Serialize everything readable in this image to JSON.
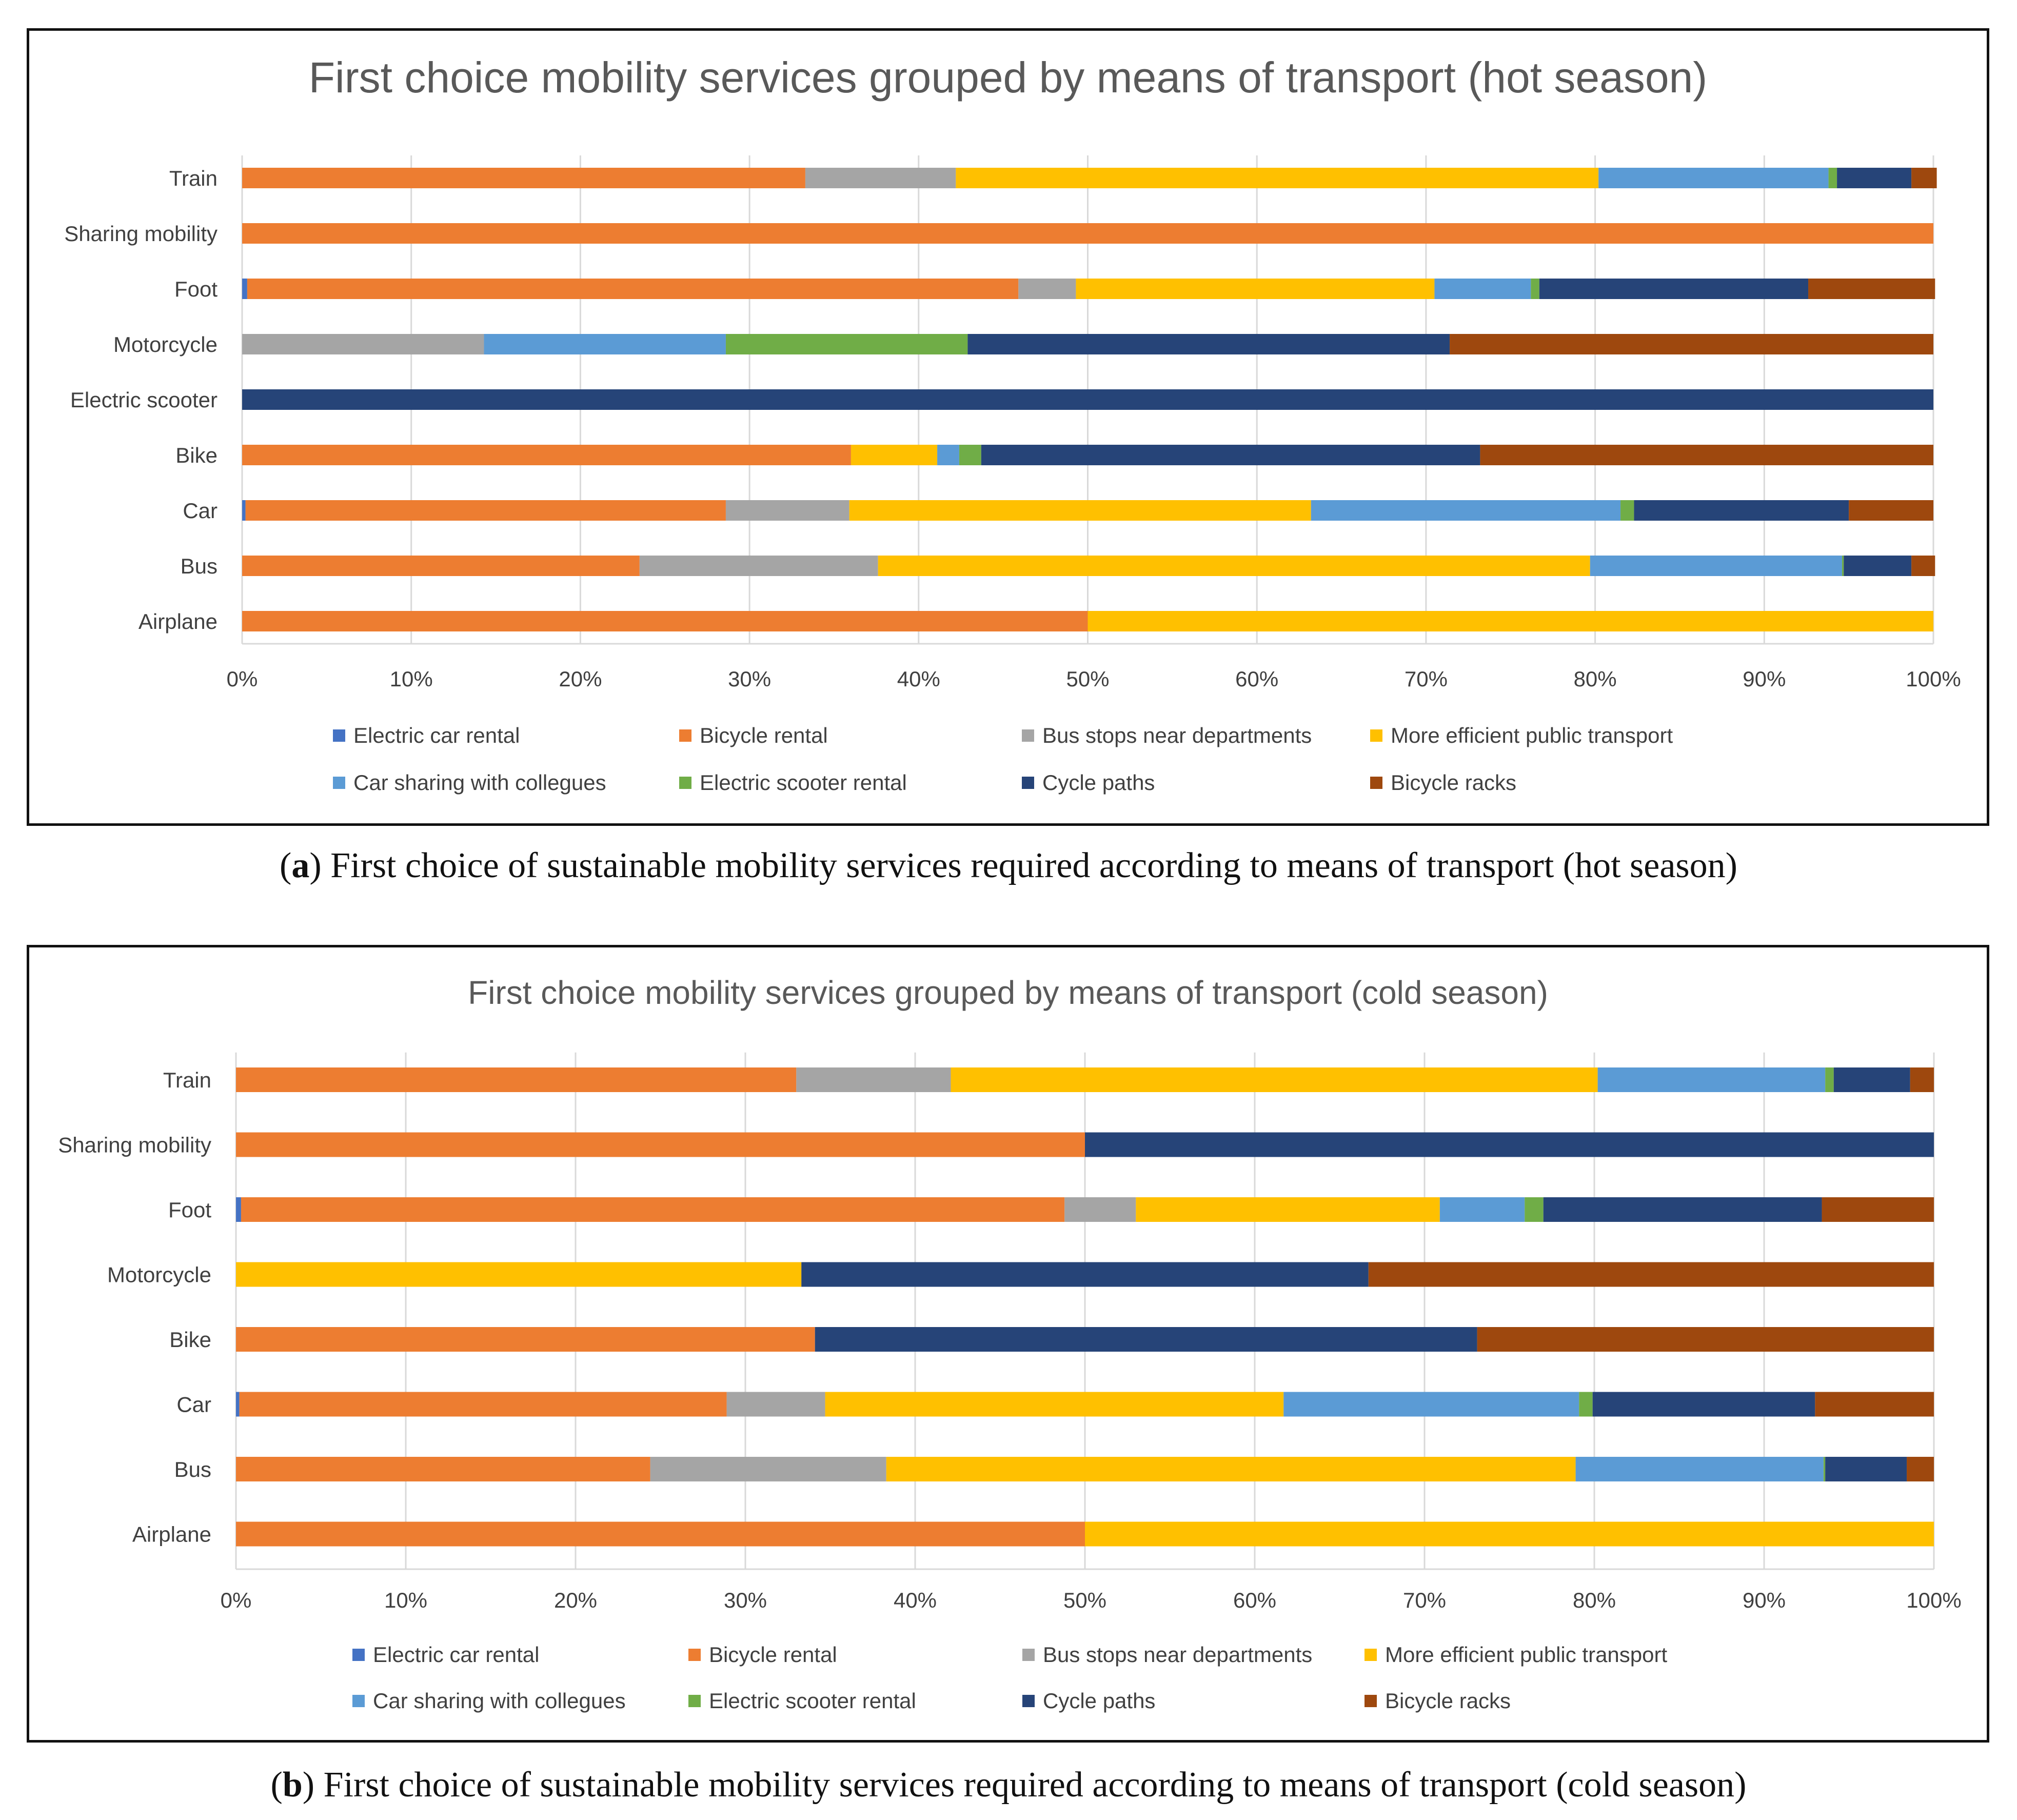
{
  "chart_data": [
    {
      "type": "bar",
      "orientation": "horizontal",
      "stacked": "percent",
      "title": "First choice mobility services grouped by means of transport (hot season)",
      "categories": [
        "Train",
        "Sharing mobility",
        "Foot",
        "Motorcycle",
        "Electric scooter",
        "Bike",
        "Car",
        "Bus",
        "Airplane"
      ],
      "xticks": [
        "0%",
        "10%",
        "20%",
        "30%",
        "40%",
        "50%",
        "60%",
        "70%",
        "80%",
        "90%",
        "100%"
      ],
      "xlim": [
        0,
        100
      ],
      "grid": true,
      "legend_position": "bottom",
      "series": [
        {
          "name": "Electric car rental",
          "color": "#4472C4",
          "values": [
            0,
            0,
            0.3,
            0,
            0,
            0,
            0.2,
            0,
            0
          ]
        },
        {
          "name": "Bicycle rental",
          "color": "#ED7D31",
          "values": [
            33.3,
            100,
            45.6,
            0,
            0,
            36,
            28.4,
            23.5,
            50
          ]
        },
        {
          "name": "Bus stops near departments",
          "color": "#A5A5A5",
          "values": [
            8.9,
            0,
            3.4,
            14.3,
            0,
            0,
            7.3,
            14.1,
            0
          ]
        },
        {
          "name": "More efficient public transport",
          "color": "#FFC000",
          "values": [
            38,
            0,
            21.2,
            0,
            0,
            5.1,
            27.3,
            42.1,
            50
          ]
        },
        {
          "name": "Car sharing with collegues",
          "color": "#5B9BD5",
          "values": [
            13.6,
            0,
            5.7,
            14.3,
            0,
            1.3,
            18.3,
            14.9,
            0
          ]
        },
        {
          "name": "Electric scooter rental",
          "color": "#70AD47",
          "values": [
            0.5,
            0,
            0.5,
            14.3,
            0,
            1.3,
            0.8,
            0.1,
            0
          ]
        },
        {
          "name": "Cycle paths",
          "color": "#264478",
          "values": [
            4.4,
            0,
            15.9,
            28.5,
            100,
            29.5,
            12.7,
            4,
            0
          ]
        },
        {
          "name": "Bicycle racks",
          "color": "#9E480E",
          "values": [
            1.5,
            0,
            7.5,
            28.6,
            0,
            26.8,
            5,
            1.4,
            0
          ]
        }
      ]
    },
    {
      "type": "bar",
      "orientation": "horizontal",
      "stacked": "percent",
      "title": "First choice mobility services grouped by means of transport (cold season)",
      "categories": [
        "Train",
        "Sharing mobility",
        "Foot",
        "Motorcycle",
        "Bike",
        "Car",
        "Bus",
        "Airplane"
      ],
      "xticks": [
        "0%",
        "10%",
        "20%",
        "30%",
        "40%",
        "50%",
        "60%",
        "70%",
        "80%",
        "90%",
        "100%"
      ],
      "xlim": [
        0,
        100
      ],
      "grid": true,
      "legend_position": "bottom",
      "series": [
        {
          "name": "Electric car rental",
          "color": "#4472C4",
          "values": [
            0,
            0,
            0.3,
            0,
            0,
            0.2,
            0,
            0
          ]
        },
        {
          "name": "Bicycle rental",
          "color": "#ED7D31",
          "values": [
            33,
            50,
            48.5,
            0,
            34.1,
            28.7,
            24.4,
            50
          ]
        },
        {
          "name": "Bus stops near departments",
          "color": "#A5A5A5",
          "values": [
            9.1,
            0,
            4.2,
            0,
            0,
            5.8,
            13.9,
            0
          ]
        },
        {
          "name": "More efficient public transport",
          "color": "#FFC000",
          "values": [
            38.1,
            0,
            17.9,
            33.3,
            0,
            27,
            40.6,
            50
          ]
        },
        {
          "name": "Car sharing with collegues",
          "color": "#5B9BD5",
          "values": [
            13.4,
            0,
            5,
            0,
            0,
            17.4,
            14.6,
            0
          ]
        },
        {
          "name": "Electric scooter rental",
          "color": "#70AD47",
          "values": [
            0.5,
            0,
            1.1,
            0,
            0,
            0.8,
            0.1,
            0
          ]
        },
        {
          "name": "Cycle paths",
          "color": "#264478",
          "values": [
            4.5,
            50,
            16.4,
            33.4,
            39,
            13.1,
            4.8,
            0
          ]
        },
        {
          "name": "Bicycle racks",
          "color": "#9E480E",
          "values": [
            1.4,
            0,
            6.6,
            33.3,
            26.9,
            7,
            1.6,
            0
          ]
        }
      ]
    }
  ],
  "captions": {
    "a": {
      "letter": "a",
      "text": " First choice of sustainable mobility services required according to means of transport (hot season)"
    },
    "b": {
      "letter": "b",
      "text": " First choice of sustainable mobility services required according to means of transport (cold season)"
    }
  }
}
